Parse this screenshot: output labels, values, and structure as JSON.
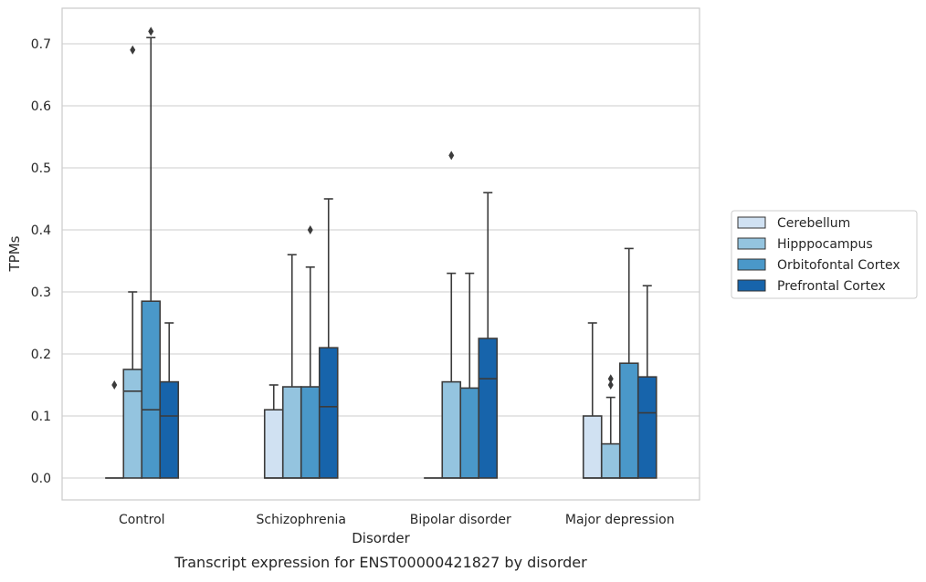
{
  "chart_data": {
    "type": "box",
    "title": "Transcript expression for ENST00000421827 by disorder",
    "xlabel": "Disorder",
    "ylabel": "TPMs",
    "ylim": [
      -0.035,
      0.755
    ],
    "yticks": [
      "0.0",
      "0.1",
      "0.2",
      "0.3",
      "0.4",
      "0.5",
      "0.6",
      "0.7"
    ],
    "grid": "horizontal",
    "legend_position": "right",
    "categories": [
      "Control",
      "Schizophrenia",
      "Bipolar disorder",
      "Major depression"
    ],
    "series": [
      {
        "name": "Cerebellum",
        "color": "#d0e1f2",
        "boxes": [
          {
            "whislo": 0.0,
            "q1": 0.0,
            "med": 0.0,
            "q3": 0.0,
            "whishi": 0.0,
            "fliers": [
              0.15
            ]
          },
          {
            "whislo": 0.0,
            "q1": 0.0,
            "med": 0.0,
            "q3": 0.11,
            "whishi": 0.15,
            "fliers": []
          },
          {
            "whislo": 0.0,
            "q1": 0.0,
            "med": 0.0,
            "q3": 0.0,
            "whishi": 0.0,
            "fliers": []
          },
          {
            "whislo": 0.0,
            "q1": 0.0,
            "med": 0.0,
            "q3": 0.1,
            "whishi": 0.25,
            "fliers": []
          }
        ]
      },
      {
        "name": "Hipppocampus",
        "color": "#94c4df",
        "boxes": [
          {
            "whislo": 0.0,
            "q1": 0.0,
            "med": 0.14,
            "q3": 0.175,
            "whishi": 0.3,
            "fliers": [
              0.69
            ]
          },
          {
            "whislo": 0.0,
            "q1": 0.0,
            "med": 0.0,
            "q3": 0.147,
            "whishi": 0.36,
            "fliers": []
          },
          {
            "whislo": 0.0,
            "q1": 0.0,
            "med": 0.0,
            "q3": 0.155,
            "whishi": 0.33,
            "fliers": [
              0.52
            ]
          },
          {
            "whislo": 0.0,
            "q1": 0.0,
            "med": 0.0,
            "q3": 0.055,
            "whishi": 0.13,
            "fliers": [
              0.15,
              0.16
            ]
          }
        ]
      },
      {
        "name": "Orbitofontal Cortex",
        "color": "#4a98c9",
        "boxes": [
          {
            "whislo": 0.0,
            "q1": 0.0,
            "med": 0.11,
            "q3": 0.285,
            "whishi": 0.71,
            "fliers": [
              0.72
            ]
          },
          {
            "whislo": 0.0,
            "q1": 0.0,
            "med": 0.0,
            "q3": 0.147,
            "whishi": 0.34,
            "fliers": [
              0.4
            ]
          },
          {
            "whislo": 0.0,
            "q1": 0.0,
            "med": 0.0,
            "q3": 0.145,
            "whishi": 0.33,
            "fliers": []
          },
          {
            "whislo": 0.0,
            "q1": 0.0,
            "med": 0.0,
            "q3": 0.185,
            "whishi": 0.37,
            "fliers": []
          }
        ]
      },
      {
        "name": "Prefrontal Cortex",
        "color": "#1764ab",
        "boxes": [
          {
            "whislo": 0.0,
            "q1": 0.0,
            "med": 0.1,
            "q3": 0.155,
            "whishi": 0.25,
            "fliers": []
          },
          {
            "whislo": 0.0,
            "q1": 0.0,
            "med": 0.115,
            "q3": 0.21,
            "whishi": 0.45,
            "fliers": []
          },
          {
            "whislo": 0.0,
            "q1": 0.0,
            "med": 0.16,
            "q3": 0.225,
            "whishi": 0.46,
            "fliers": []
          },
          {
            "whislo": 0.0,
            "q1": 0.0,
            "med": 0.105,
            "q3": 0.163,
            "whishi": 0.31,
            "fliers": []
          }
        ]
      }
    ]
  }
}
